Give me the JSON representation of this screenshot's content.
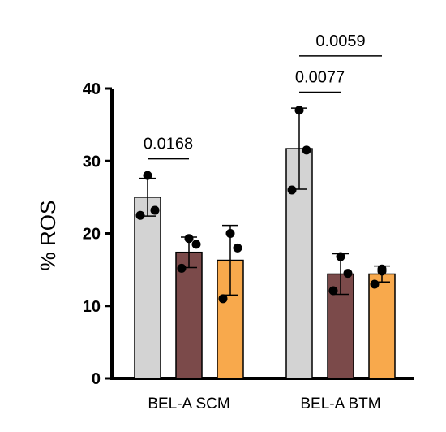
{
  "chart_data": {
    "type": "bar",
    "ylabel": "% ROS",
    "ylim": [
      0,
      40
    ],
    "yticks": [
      0,
      10,
      20,
      30,
      40
    ],
    "categories": [
      "BEL-A SCM",
      "BEL-A BTM"
    ],
    "series": [
      {
        "color": "#d3d3d3",
        "values": [
          25.0,
          31.7
        ],
        "sd": [
          2.6,
          5.6
        ],
        "points": [
          [
            28.0,
            22.5,
            23.2
          ],
          [
            37.0,
            26.0,
            31.5
          ]
        ]
      },
      {
        "color": "#7b4a4a",
        "values": [
          17.4,
          14.4
        ],
        "sd": [
          2.1,
          2.8
        ],
        "points": [
          [
            19.3,
            15.2,
            18.5
          ],
          [
            16.8,
            12.1,
            14.5
          ]
        ]
      },
      {
        "color": "#f8a94c",
        "values": [
          16.3,
          14.4
        ],
        "sd": [
          4.8,
          1.1
        ],
        "points": [
          [
            20.0,
            11.0,
            18.0
          ],
          [
            14.8,
            13.0,
            15.1
          ]
        ]
      }
    ],
    "significance": [
      {
        "label": "0.0168",
        "from": [
          0,
          0
        ],
        "to": [
          0,
          1
        ],
        "y": 30.3
      },
      {
        "label": "0.0077",
        "from": [
          1,
          0
        ],
        "to": [
          1,
          1
        ],
        "y": 39.5
      },
      {
        "label": "0.0059",
        "from": [
          1,
          0
        ],
        "to": [
          1,
          2
        ],
        "y": 44.5
      }
    ]
  }
}
